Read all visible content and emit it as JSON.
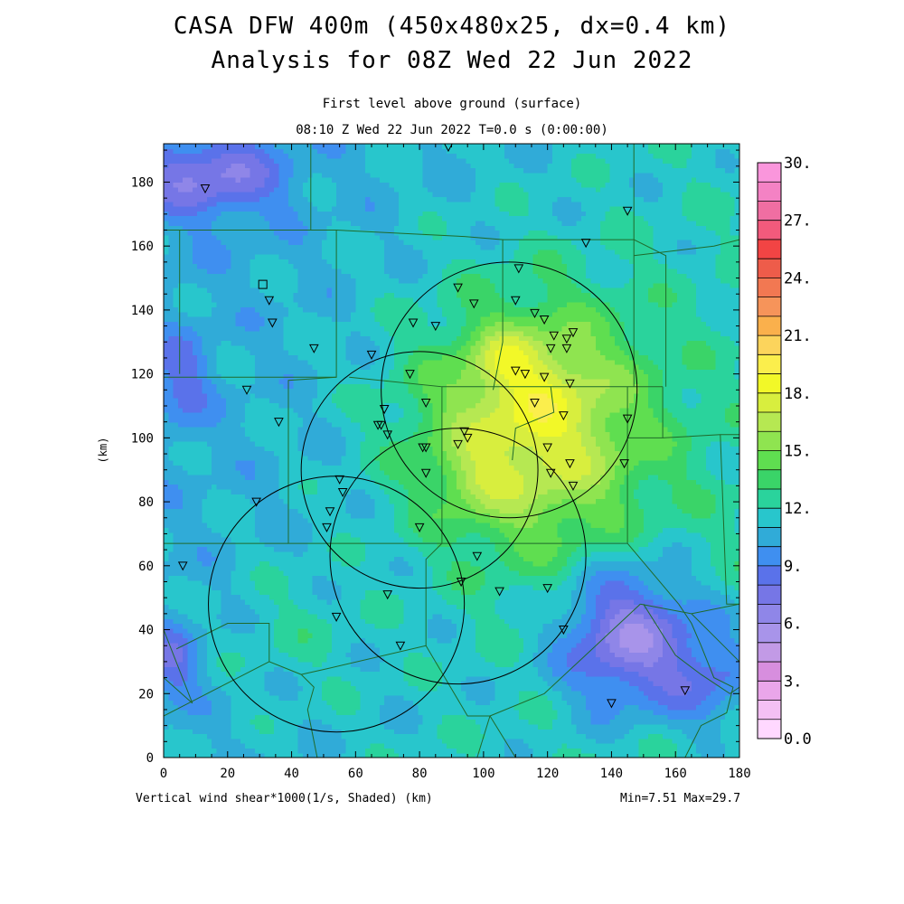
{
  "header": {
    "title_line1": "CASA DFW 400m (450x480x25, dx=0.4 km)",
    "title_line2": "Analysis for 08Z Wed 22 Jun 2022",
    "subtitle_line1": "First level above ground (surface)",
    "subtitle_line2": "08:10 Z Wed 22 Jun 2022   T=0.0 s (0:00:00)"
  },
  "footer": {
    "variable_label": "Vertical wind shear*1000(1/s, Shaded)  (km)",
    "min_max": "Min=7.51 Max=29.7"
  },
  "chart_data": {
    "type": "heatmap",
    "xlabel": "",
    "ylabel": "(km)",
    "xlim": [
      0,
      180
    ],
    "ylim": [
      0,
      192
    ],
    "x_ticks": [
      "0",
      "20",
      "40",
      "60",
      "80",
      "100",
      "120",
      "140",
      "160",
      "180"
    ],
    "y_ticks": [
      "0",
      "20",
      "40",
      "60",
      "80",
      "100",
      "120",
      "140",
      "160",
      "180"
    ],
    "min": 7.51,
    "max": 29.7,
    "colorbar": {
      "labels": [
        "30.",
        "27.",
        "24.",
        "21.",
        "18.",
        "15.",
        "12.",
        "9.",
        "6.",
        "3.",
        "0.0"
      ],
      "range": [
        0,
        30
      ],
      "step": 1.5,
      "colors": [
        "#ffd8ff",
        "#f4c0f4",
        "#eaa6ea",
        "#d78ede",
        "#c29ae6",
        "#a894ea",
        "#8f86e8",
        "#7676e6",
        "#5a72ea",
        "#3f8ff0",
        "#30abd8",
        "#28c6cc",
        "#2ad39c",
        "#3ad468",
        "#5fde50",
        "#8fe450",
        "#b6e852",
        "#d8ee3e",
        "#f2f828",
        "#fbee4c",
        "#fcd45c",
        "#fab04c",
        "#f6945a",
        "#f27852",
        "#ee5c4a",
        "#f24444",
        "#f25a7c",
        "#f06ea2",
        "#f482c4",
        "#fa96dc"
      ]
    },
    "shear_field": [
      {
        "x": 115,
        "y": 103,
        "sx": 36,
        "sy": 38,
        "v": 9.5
      },
      {
        "x": 106,
        "y": 125,
        "sx": 9,
        "sy": 9,
        "v": 3.0
      },
      {
        "x": 97,
        "y": 87,
        "sx": 10,
        "sy": 9,
        "v": 2.0
      },
      {
        "x": 118,
        "y": 118,
        "sx": 16,
        "sy": 16,
        "v": 1.5
      },
      {
        "x": 145,
        "y": 38,
        "sx": 20,
        "sy": 22,
        "v": -8.5
      },
      {
        "x": 172,
        "y": 25,
        "sx": 16,
        "sy": 18,
        "v": -4.5
      },
      {
        "x": 6,
        "y": 118,
        "sx": 8,
        "sy": 14,
        "v": -3.5
      },
      {
        "x": 15,
        "y": 182,
        "sx": 22,
        "sy": 12,
        "v": -5.5
      },
      {
        "x": 3,
        "y": 30,
        "sx": 8,
        "sy": 12,
        "v": -4.0
      },
      {
        "x": 40,
        "y": 40,
        "sx": 22,
        "sy": 20,
        "v": 1.5
      }
    ],
    "radar_circles": [
      {
        "x": 108,
        "y": 115,
        "r": 40
      },
      {
        "x": 80,
        "y": 90,
        "r": 37
      },
      {
        "x": 92,
        "y": 63,
        "r": 40
      },
      {
        "x": 54,
        "y": 48,
        "r": 40
      }
    ],
    "stations_triangle": [
      [
        13,
        178
      ],
      [
        145,
        171
      ],
      [
        132,
        161
      ],
      [
        111,
        153
      ],
      [
        33,
        143
      ],
      [
        34,
        136
      ],
      [
        47,
        128
      ],
      [
        65,
        126
      ],
      [
        78,
        136
      ],
      [
        85,
        135
      ],
      [
        92,
        147
      ],
      [
        97,
        142
      ],
      [
        110,
        143
      ],
      [
        116,
        139
      ],
      [
        119,
        137
      ],
      [
        122,
        132
      ],
      [
        121,
        128
      ],
      [
        126,
        131
      ],
      [
        128,
        133
      ],
      [
        126,
        128
      ],
      [
        110,
        121
      ],
      [
        113,
        120
      ],
      [
        119,
        119
      ],
      [
        127,
        117
      ],
      [
        77,
        120
      ],
      [
        26,
        115
      ],
      [
        82,
        111
      ],
      [
        116,
        111
      ],
      [
        125,
        107
      ],
      [
        145,
        106
      ],
      [
        36,
        105
      ],
      [
        69,
        109
      ],
      [
        67,
        104
      ],
      [
        68,
        104
      ],
      [
        70,
        101
      ],
      [
        81,
        97
      ],
      [
        82,
        97
      ],
      [
        92,
        98
      ],
      [
        94,
        102
      ],
      [
        95,
        100
      ],
      [
        120,
        97
      ],
      [
        144,
        92
      ],
      [
        127,
        92
      ],
      [
        121,
        89
      ],
      [
        82,
        89
      ],
      [
        128,
        85
      ],
      [
        55,
        87
      ],
      [
        56,
        83
      ],
      [
        29,
        80
      ],
      [
        52,
        77
      ],
      [
        51,
        72
      ],
      [
        80,
        72
      ],
      [
        98,
        63
      ],
      [
        6,
        60
      ],
      [
        93,
        55
      ],
      [
        70,
        51
      ],
      [
        105,
        52
      ],
      [
        120,
        53
      ],
      [
        54,
        44
      ],
      [
        125,
        40
      ],
      [
        74,
        35
      ],
      [
        163,
        21
      ],
      [
        140,
        17
      ],
      [
        89,
        191
      ]
    ],
    "stations_square": [
      [
        31,
        148
      ]
    ],
    "boundaries": [
      [
        [
          46,
          192
        ],
        [
          46,
          165
        ]
      ],
      [
        [
          0,
          165
        ],
        [
          54,
          165
        ],
        [
          54,
          150
        ]
      ],
      [
        [
          0,
          165
        ],
        [
          5,
          165
        ],
        [
          5,
          120
        ]
      ],
      [
        [
          0,
          119
        ],
        [
          54,
          119
        ],
        [
          54,
          150
        ]
      ],
      [
        [
          54,
          165
        ],
        [
          94,
          163
        ],
        [
          106,
          162
        ],
        [
          106,
          130
        ],
        [
          103,
          115
        ]
      ],
      [
        [
          106,
          162
        ],
        [
          147,
          162
        ],
        [
          147,
          116
        ]
      ],
      [
        [
          147,
          162
        ],
        [
          157,
          157
        ],
        [
          157,
          116
        ]
      ],
      [
        [
          147,
          162
        ],
        [
          147,
          192
        ]
      ],
      [
        [
          147,
          157
        ],
        [
          172,
          160
        ],
        [
          180,
          162
        ]
      ],
      [
        [
          54,
          119
        ],
        [
          39,
          118
        ],
        [
          39,
          67
        ],
        [
          58,
          67
        ],
        [
          87,
          67
        ]
      ],
      [
        [
          58,
          119
        ],
        [
          87,
          116
        ],
        [
          87,
          67
        ]
      ],
      [
        [
          87,
          116
        ],
        [
          121,
          116
        ],
        [
          122,
          108
        ],
        [
          110,
          103
        ],
        [
          109,
          93
        ]
      ],
      [
        [
          121,
          116
        ],
        [
          156,
          116
        ]
      ],
      [
        [
          156,
          116
        ],
        [
          156,
          100
        ],
        [
          145,
          100
        ]
      ],
      [
        [
          156,
          100
        ],
        [
          174,
          101
        ],
        [
          180,
          101
        ]
      ],
      [
        [
          174,
          101
        ],
        [
          176,
          48
        ],
        [
          180,
          48
        ]
      ],
      [
        [
          145,
          116
        ],
        [
          145,
          67
        ],
        [
          161,
          48
        ]
      ],
      [
        [
          145,
          67
        ],
        [
          87,
          67
        ]
      ],
      [
        [
          0,
          67
        ],
        [
          39,
          67
        ]
      ],
      [
        [
          87,
          67
        ],
        [
          82,
          62
        ],
        [
          82,
          35
        ],
        [
          52,
          28
        ],
        [
          43,
          26
        ]
      ],
      [
        [
          82,
          35
        ],
        [
          95,
          13
        ],
        [
          102,
          13
        ]
      ],
      [
        [
          102,
          13
        ],
        [
          98,
          0
        ]
      ],
      [
        [
          102,
          13
        ],
        [
          110,
          0
        ]
      ],
      [
        [
          102,
          13
        ],
        [
          119,
          20
        ],
        [
          149,
          48
        ]
      ],
      [
        [
          149,
          48
        ],
        [
          165,
          45
        ],
        [
          180,
          48
        ]
      ],
      [
        [
          0,
          13
        ],
        [
          33,
          30
        ],
        [
          38,
          28
        ],
        [
          43,
          26
        ]
      ],
      [
        [
          43,
          26
        ],
        [
          47,
          22
        ],
        [
          45,
          15
        ],
        [
          48,
          0
        ]
      ],
      [
        [
          33,
          30
        ],
        [
          33,
          42
        ],
        [
          20,
          42
        ],
        [
          4,
          34
        ]
      ],
      [
        [
          0,
          40
        ],
        [
          9,
          17
        ]
      ],
      [
        [
          161,
          48
        ],
        [
          165,
          42
        ],
        [
          168,
          35
        ],
        [
          172,
          25
        ],
        [
          178,
          22
        ],
        [
          176,
          14
        ],
        [
          168,
          10
        ],
        [
          163,
          0
        ]
      ],
      [
        [
          165,
          45
        ],
        [
          175,
          35
        ],
        [
          180,
          30
        ]
      ],
      [
        [
          150,
          48
        ],
        [
          155,
          40
        ],
        [
          160,
          32
        ],
        [
          168,
          26
        ],
        [
          177,
          20
        ],
        [
          180,
          22
        ]
      ],
      [
        [
          9,
          17
        ],
        [
          0,
          25
        ]
      ]
    ]
  }
}
